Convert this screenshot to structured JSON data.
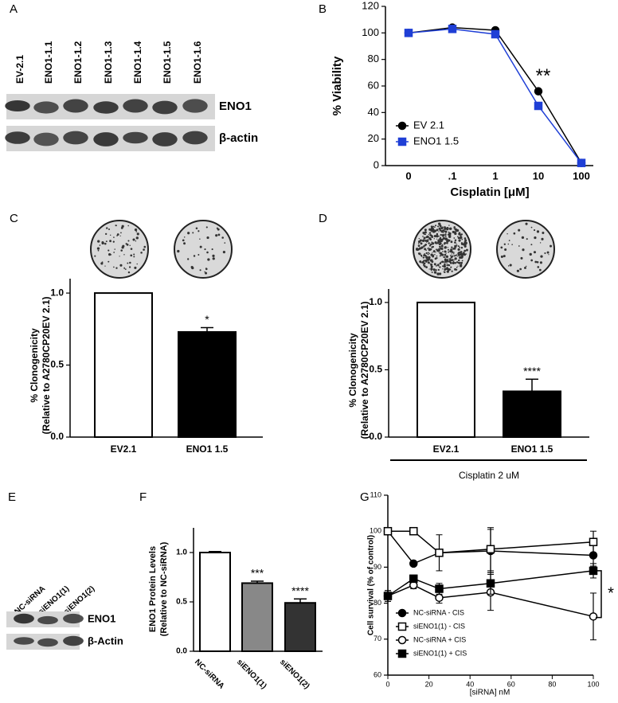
{
  "panel_labels": [
    "A",
    "B",
    "C",
    "D",
    "E",
    "F",
    "G"
  ],
  "blot_a": {
    "lanes": [
      "EV-2.1",
      "ENO1-1.1",
      "ENO1-1.2",
      "ENO1-1.3",
      "ENO1-1.4",
      "ENO1-1.5",
      "ENO1-1.6"
    ],
    "bands": [
      "ENO1",
      "β-actin"
    ]
  },
  "blot_e": {
    "lanes": [
      "NC-siRNA",
      "siENO1(1)",
      "siENO1(2)"
    ],
    "bands": [
      "ENO1",
      "β-Actin"
    ]
  },
  "chart_data": [
    {
      "type": "line",
      "categories": [
        "0",
        ".1",
        "1",
        "10",
        "100"
      ],
      "series": [
        {
          "name": "EV 2.1",
          "color": "#000000",
          "marker": "circle",
          "filled": true,
          "values": [
            100,
            104,
            102,
            56,
            2
          ]
        },
        {
          "name": "ENO1 1.5",
          "color": "#1f3fd6",
          "marker": "square",
          "filled": true,
          "values": [
            100,
            103,
            99,
            45,
            2
          ]
        }
      ],
      "ylim": [
        0,
        120
      ],
      "yticks": [
        0,
        20,
        40,
        60,
        80,
        100,
        120
      ],
      "xlabel": "Cisplatin [μM]",
      "ylabel": [
        "% Viability"
      ],
      "annotations": [
        {
          "text": "**",
          "x": "10"
        }
      ],
      "legend": "lower left"
    },
    {
      "type": "bar",
      "categories": [
        "EV2.1",
        "ENO1 1.5"
      ],
      "values": [
        1.0,
        0.73
      ],
      "errors": [
        0,
        0.03
      ],
      "colors": [
        "#ffffff",
        "#000000"
      ],
      "ylim": [
        0,
        1.1
      ],
      "yticks": [
        {
          "value": 0,
          "label": "0.0"
        },
        {
          "value": 0.5,
          "label": "0.5"
        },
        {
          "value": 1,
          "label": "1.0"
        }
      ],
      "ylabel": [
        "% Clonogenicity",
        "(Relative to A2780CP20EV 2.1)"
      ],
      "annotations": [
        {
          "text": "*",
          "x": "ENO1 1.5"
        }
      ]
    },
    {
      "type": "bar",
      "categories": [
        "EV2.1",
        "ENO1 1.5"
      ],
      "values": [
        1.0,
        0.34
      ],
      "errors": [
        0,
        0.09
      ],
      "colors": [
        "#ffffff",
        "#000000"
      ],
      "ylim": [
        0,
        1.1
      ],
      "yticks": [
        {
          "value": 0,
          "label": "0.0"
        },
        {
          "value": 0.5,
          "label": "0.5"
        },
        {
          "value": 1,
          "label": "1.0"
        }
      ],
      "ylabel": [
        "% Clonogenicity",
        "(Relative to A2780CP20EV 2.1)"
      ],
      "xlabel": "Cisplatin 2 uM",
      "annotations": [
        {
          "text": "****",
          "x": "ENO1 1.5"
        }
      ]
    },
    {
      "type": "bar",
      "categories": [
        "NC-siRNA",
        "siENO1(1)",
        "siENO1(2)"
      ],
      "values": [
        1.0,
        0.69,
        0.49
      ],
      "errors": [
        0.01,
        0.02,
        0.04
      ],
      "colors": [
        "#ffffff",
        "#888888",
        "#333333"
      ],
      "ylim": [
        0,
        1.25
      ],
      "yticks": [
        {
          "value": 0,
          "label": "0.0"
        },
        {
          "value": 0.5,
          "label": "0.5"
        },
        {
          "value": 1,
          "label": "1.0"
        }
      ],
      "ylabel": [
        "ENO1 Protein Levels",
        "(Relative to NC-siRNA)"
      ],
      "annotations": [
        {
          "text": "***",
          "x": "siENO1(1)"
        },
        {
          "text": "****",
          "x": "siENO1(2)"
        }
      ]
    },
    {
      "type": "line",
      "x": [
        0,
        12.5,
        25,
        50,
        100
      ],
      "series": [
        {
          "name": "NC-siRNA - CIS",
          "color": "#000000",
          "marker": "circle",
          "filled": true,
          "values": [
            100,
            91,
            94,
            94.5,
            93.3
          ],
          "errors": [
            0,
            0,
            0,
            6,
            3
          ]
        },
        {
          "name": "siENO1(1) - CIS",
          "color": "#000000",
          "marker": "square",
          "filled": false,
          "values": [
            100,
            100,
            94,
            95,
            97
          ],
          "errors": [
            0,
            0,
            5,
            6,
            3
          ]
        },
        {
          "name": "NC-siRNA + CIS",
          "color": "#000000",
          "marker": "circle",
          "filled": false,
          "values": [
            82,
            85,
            81.5,
            83,
            76.3
          ],
          "errors": [
            1.5,
            1,
            1.5,
            5,
            6.5
          ]
        },
        {
          "name": "siENO1(1) + CIS",
          "color": "#000000",
          "marker": "square",
          "filled": true,
          "values": [
            82,
            86.8,
            84,
            85.5,
            89
          ],
          "errors": [
            1.5,
            1,
            1.5,
            3,
            2
          ]
        }
      ],
      "xlim": [
        0,
        100
      ],
      "xticks": [
        0,
        20,
        40,
        60,
        80,
        100
      ],
      "ylim": [
        60,
        110
      ],
      "yticks": [
        60,
        70,
        80,
        90,
        100,
        110
      ],
      "xlabel": "[siRNA] nM",
      "ylabel": [
        "Cell survival (% of control)"
      ],
      "annotations": [
        {
          "text": "*"
        }
      ],
      "legend": "lower left"
    }
  ]
}
